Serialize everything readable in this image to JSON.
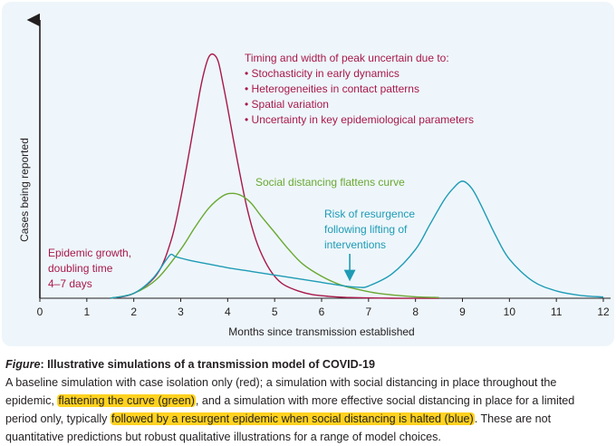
{
  "chart_data": {
    "type": "line",
    "xlabel": "Months since transmission established",
    "ylabel": "Cases being reported",
    "xlim": [
      0,
      12
    ],
    "ylim": [
      0,
      1
    ],
    "x_ticks": [
      "0",
      "1",
      "2",
      "3",
      "4",
      "5",
      "6",
      "7",
      "8",
      "9",
      "10",
      "11",
      "12"
    ],
    "grid": false,
    "series": [
      {
        "color": "#a8184a",
        "x": [
          1.5,
          2.0,
          2.5,
          2.8,
          3.0,
          3.2,
          3.4,
          3.5,
          3.6,
          3.7,
          3.8,
          3.9,
          4.0,
          4.2,
          4.4,
          4.6,
          4.8,
          5.0,
          5.2,
          5.5,
          5.8,
          6.2,
          6.6,
          7.5,
          8.5
        ],
        "y": [
          0.0,
          0.02,
          0.1,
          0.24,
          0.41,
          0.62,
          0.84,
          0.93,
          0.99,
          1.0,
          0.97,
          0.88,
          0.78,
          0.57,
          0.38,
          0.24,
          0.15,
          0.09,
          0.055,
          0.03,
          0.015,
          0.007,
          0.003,
          0.0,
          0.0
        ]
      },
      {
        "color": "#6aa832",
        "x": [
          1.5,
          2.0,
          2.5,
          3.0,
          3.3,
          3.6,
          3.9,
          4.1,
          4.3,
          4.5,
          4.7,
          5.0,
          5.3,
          5.6,
          6.0,
          6.4,
          6.8,
          7.2,
          7.6,
          8.0,
          8.5
        ],
        "y": [
          0.0,
          0.02,
          0.08,
          0.2,
          0.29,
          0.37,
          0.42,
          0.43,
          0.42,
          0.39,
          0.34,
          0.27,
          0.2,
          0.14,
          0.09,
          0.055,
          0.035,
          0.02,
          0.012,
          0.006,
          0.003
        ]
      },
      {
        "color": "#1e9bb5",
        "x": [
          1.5,
          2.0,
          2.4,
          2.7,
          2.8,
          2.9,
          3.2,
          3.6,
          4.0,
          4.5,
          5.0,
          5.5,
          6.0,
          6.5,
          6.8,
          7.0,
          7.5,
          8.0,
          8.3,
          8.6,
          8.8,
          9.0,
          9.2,
          9.4,
          9.7,
          10.0,
          10.5,
          11.0,
          11.5,
          12.0
        ],
        "y": [
          0.0,
          0.02,
          0.08,
          0.16,
          0.18,
          0.17,
          0.155,
          0.14,
          0.125,
          0.11,
          0.095,
          0.08,
          0.065,
          0.05,
          0.045,
          0.05,
          0.1,
          0.2,
          0.3,
          0.4,
          0.45,
          0.48,
          0.45,
          0.38,
          0.26,
          0.16,
          0.07,
          0.03,
          0.012,
          0.005
        ]
      }
    ],
    "annotations": {
      "peak_uncertainty_title": "Timing and width of peak uncertain due to:",
      "peak_uncertainty_items": [
        "• Stochasticity in early dynamics",
        "• Heterogeneities in contact patterns",
        "• Spatial variation",
        "• Uncertainty in key epidemiological parameters"
      ],
      "social_distancing": "Social distancing flattens curve",
      "resurgence": [
        "Risk of resurgence",
        "following lifting of",
        "interventions"
      ],
      "epidemic_growth": [
        "Epidemic growth,",
        "doubling time",
        "4–7 days"
      ],
      "resurgence_arrow_x": 6.6
    }
  },
  "caption": {
    "figure_label": "Figure",
    "title": ": Illustrative simulations of a transmission model of COVID-19",
    "line1": "A baseline simulation with case isolation only (red); a simulation with social distancing in place throughout the",
    "line2_pre": "epidemic, ",
    "line2_hl": "flattening the curve (green)",
    "line2_post": ", and a simulation with more effective social distancing in place for a limited",
    "line3_pre": "period only, typically ",
    "line3_hl": "followed by a resurgent epidemic when social distancing is halted (blue)",
    "line3_post": ". These are not",
    "line4": "quantitative predictions but robust qualitative illustrations for a range of model choices."
  }
}
